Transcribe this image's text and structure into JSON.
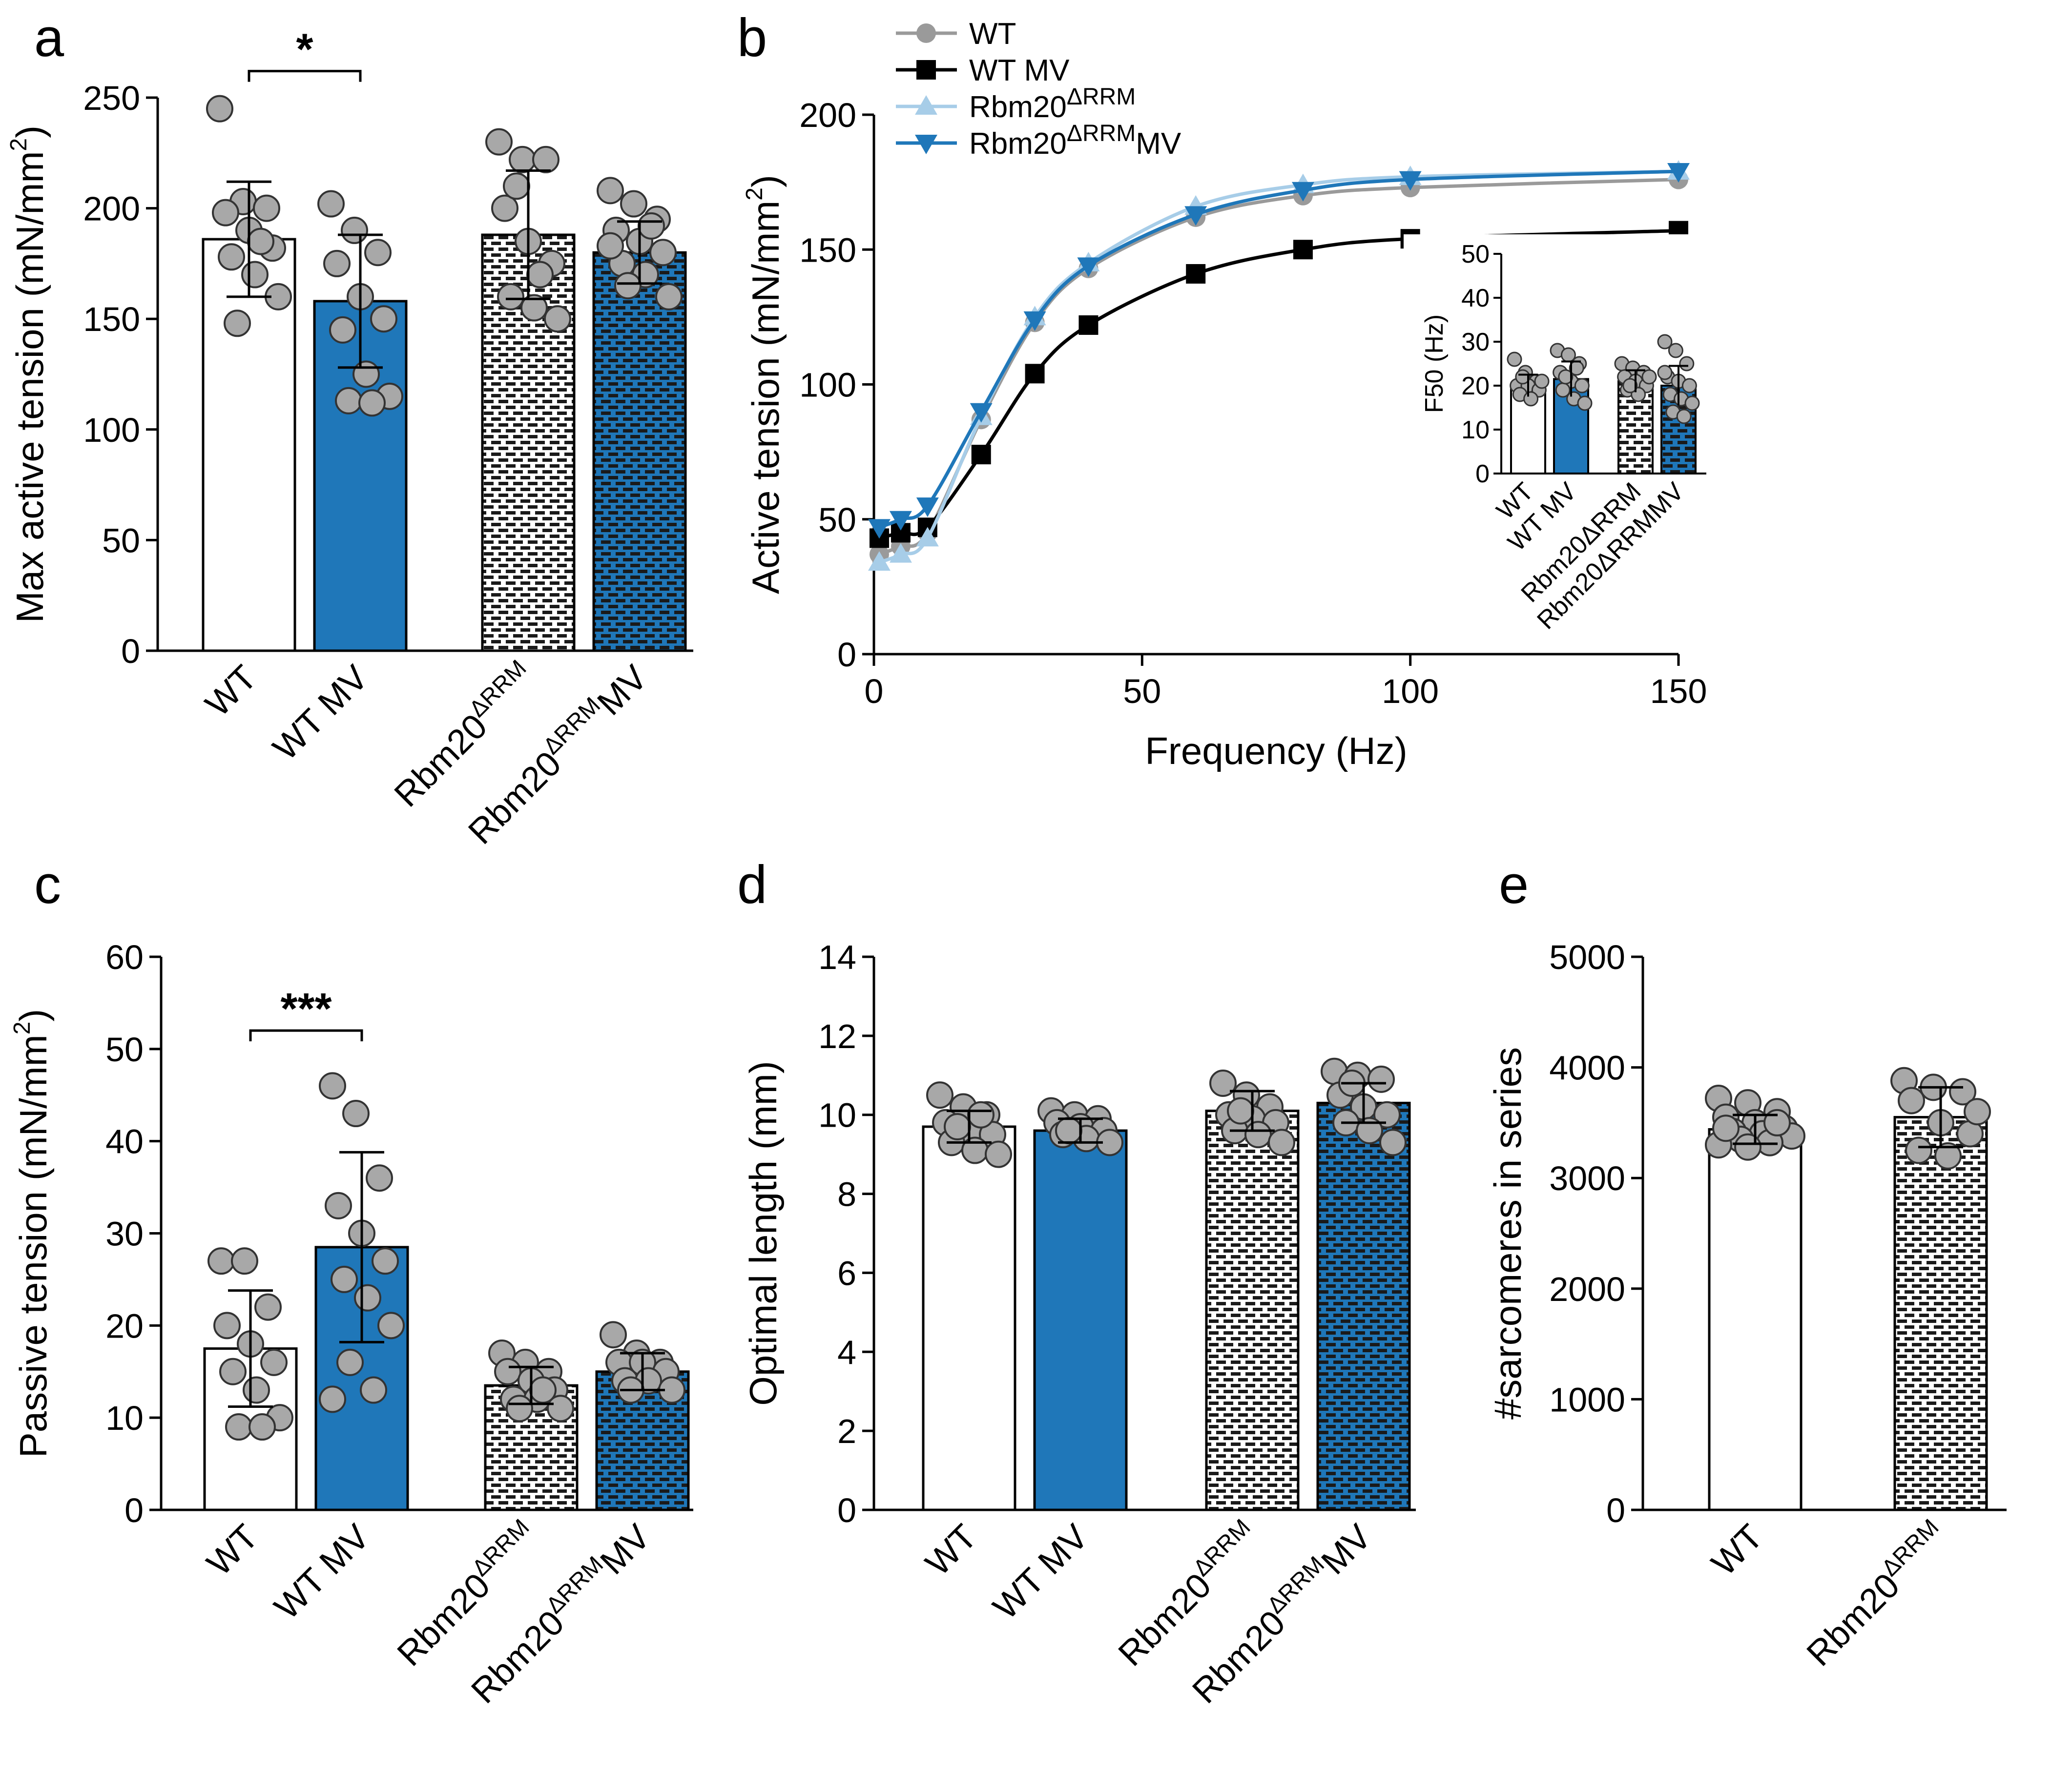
{
  "figure": {
    "panel_labels": [
      "a",
      "b",
      "c",
      "d",
      "e"
    ]
  },
  "colors": {
    "wt_fill": "#ffffff",
    "wt_mv_fill": "#1f77b9",
    "pattern_fg": "#1a1a1a",
    "pattern_blue_bg": "#1f77b9",
    "dot_fill": "#a8a8a8",
    "dot_stroke": "#333333",
    "wt_line": "#9a9a9a",
    "wt_mv_line": "#000000",
    "rbm_line": "#a7cde8",
    "rbm_mv_line": "#1f77b9"
  },
  "chart_data": [
    {
      "panel": "a",
      "type": "bar",
      "ylabel": "Max active tension (mN/mm²)",
      "ylabel_main": "Max active tension (mN/mm",
      "ylabel_sup": "2",
      "ylabel_tail": ")",
      "ylim": [
        0,
        250
      ],
      "yticks": [
        0,
        50,
        100,
        150,
        200,
        250
      ],
      "categories": [
        "WT",
        "WT MV",
        "Rbm20ΔRRM",
        "Rbm20ΔRRMMV"
      ],
      "category_labels": [
        {
          "main": "WT",
          "sup": "",
          "tail": ""
        },
        {
          "main": "WT MV",
          "sup": "",
          "tail": ""
        },
        {
          "main": "Rbm20",
          "sup": "ΔRRM",
          "tail": ""
        },
        {
          "main": "Rbm20",
          "sup": "ΔRRM",
          "tail": "MV"
        }
      ],
      "means": [
        186,
        158,
        188,
        180
      ],
      "sd": [
        26,
        30,
        29,
        14
      ],
      "points": [
        [
          245,
          203,
          200,
          198,
          190,
          182,
          178,
          170,
          160,
          148,
          185
        ],
        [
          202,
          190,
          180,
          175,
          160,
          150,
          145,
          125,
          115,
          113,
          112
        ],
        [
          230,
          222,
          222,
          200,
          185,
          175,
          160,
          155,
          150,
          210,
          170
        ],
        [
          208,
          202,
          195,
          190,
          185,
          180,
          175,
          170,
          160,
          165,
          192,
          183
        ]
      ],
      "significance": {
        "label": "*",
        "between": [
          0,
          1
        ],
        "value": 262
      }
    },
    {
      "panel": "b",
      "type": "line",
      "xlabel": "Frequency (Hz)",
      "ylabel": "Active tension (mN/mm²)",
      "ylabel_main": "Active tension (mN/mm",
      "ylabel_sup": "2",
      "ylabel_tail": ")",
      "xlim": [
        0,
        150
      ],
      "ylim": [
        0,
        200
      ],
      "xticks": [
        0,
        50,
        100,
        150
      ],
      "yticks": [
        0,
        50,
        100,
        150,
        200
      ],
      "x": [
        1,
        5,
        10,
        20,
        30,
        40,
        60,
        80,
        100,
        150
      ],
      "series": [
        {
          "name": "WT",
          "main": "WT",
          "sup": "",
          "tail": "",
          "marker": "circle",
          "values": [
            37,
            40,
            45,
            87,
            123,
            143,
            162,
            170,
            173,
            176
          ]
        },
        {
          "name": "WT MV",
          "main": "WT MV",
          "sup": "",
          "tail": "",
          "marker": "square",
          "values": [
            43,
            45,
            47,
            74,
            104,
            122,
            141,
            150,
            154,
            157
          ]
        },
        {
          "name": "Rbm20ΔRRM",
          "main": "Rbm20",
          "sup": "ΔRRM",
          "tail": "",
          "marker": "triangle-up",
          "values": [
            34,
            37,
            43,
            88,
            125,
            145,
            166,
            174,
            177,
            179
          ]
        },
        {
          "name": "Rbm20ΔRRMMV",
          "main": "Rbm20",
          "sup": "ΔRRM",
          "tail": "MV",
          "marker": "triangle-down",
          "values": [
            47,
            50,
            55,
            90,
            124,
            144,
            163,
            172,
            176,
            179
          ]
        }
      ],
      "inset": {
        "type": "bar",
        "ylabel": "F50 (Hz)",
        "ylim": [
          0,
          50
        ],
        "yticks": [
          0,
          10,
          20,
          30,
          40,
          50
        ],
        "categories": [
          "WT",
          "WT MV",
          "Rbm20ΔRRM",
          "Rbm20ΔRRMMV"
        ],
        "means": [
          20,
          21.5,
          21,
          20
        ],
        "sd": [
          2.5,
          4,
          2.5,
          4.5
        ],
        "points": [
          [
            26,
            23,
            21,
            20,
            20,
            19,
            18,
            17,
            21,
            22
          ],
          [
            28,
            27,
            25,
            23,
            21,
            20,
            19,
            17,
            16,
            22,
            24
          ],
          [
            25,
            24,
            23,
            22,
            21,
            20,
            19,
            18,
            22,
            20
          ],
          [
            30,
            28,
            25,
            22,
            21,
            20,
            18,
            17,
            16,
            14,
            13,
            23
          ]
        ]
      }
    },
    {
      "panel": "c",
      "type": "bar",
      "ylabel": "Passive tension (mN/mm²)",
      "ylabel_main": "Passive tension (mN/mm",
      "ylabel_sup": "2",
      "ylabel_tail": ")",
      "ylim": [
        0,
        60
      ],
      "yticks": [
        0,
        10,
        20,
        30,
        40,
        50,
        60
      ],
      "categories": [
        "WT",
        "WT MV",
        "Rbm20ΔRRM",
        "Rbm20ΔRRMMV"
      ],
      "category_labels": [
        {
          "main": "WT",
          "sup": "",
          "tail": ""
        },
        {
          "main": "WT MV",
          "sup": "",
          "tail": ""
        },
        {
          "main": "Rbm20",
          "sup": "ΔRRM",
          "tail": ""
        },
        {
          "main": "Rbm20",
          "sup": "ΔRRM",
          "tail": "MV"
        }
      ],
      "means": [
        17.5,
        28.5,
        13.5,
        15
      ],
      "sd": [
        6.3,
        10.3,
        2,
        2
      ],
      "points": [
        [
          27,
          27,
          22,
          20,
          18,
          16,
          15,
          13,
          10,
          9,
          9
        ],
        [
          46,
          43,
          36,
          33,
          30,
          27,
          25,
          23,
          20,
          16,
          13,
          12
        ],
        [
          17,
          16,
          15,
          15,
          14,
          13,
          12,
          12,
          11,
          11,
          13
        ],
        [
          19,
          17,
          16,
          16,
          16,
          15,
          14,
          14,
          13,
          13
        ]
      ],
      "significance": {
        "label": "***",
        "between": [
          0,
          1
        ],
        "value": 52
      }
    },
    {
      "panel": "d",
      "type": "bar",
      "ylabel": "Optimal length  (mm)",
      "ylim": [
        0,
        14
      ],
      "yticks": [
        0,
        2,
        4,
        6,
        8,
        10,
        12,
        14
      ],
      "categories": [
        "WT",
        "WT MV",
        "Rbm20ΔRRM",
        "Rbm20ΔRRMMV"
      ],
      "category_labels": [
        {
          "main": "WT",
          "sup": "",
          "tail": ""
        },
        {
          "main": "WT MV",
          "sup": "",
          "tail": ""
        },
        {
          "main": "Rbm20",
          "sup": "ΔRRM",
          "tail": ""
        },
        {
          "main": "Rbm20",
          "sup": "ΔRRM",
          "tail": "MV"
        }
      ],
      "means": [
        9.7,
        9.6,
        10.1,
        10.3
      ],
      "sd": [
        0.4,
        0.3,
        0.5,
        0.5
      ],
      "points": [
        [
          10.5,
          10.2,
          10.0,
          9.8,
          9.6,
          9.5,
          9.3,
          9.1,
          9.0,
          9.7,
          10.0
        ],
        [
          10.1,
          10.0,
          9.9,
          9.8,
          9.7,
          9.6,
          9.5,
          9.4,
          9.3,
          9.6
        ],
        [
          10.8,
          10.5,
          10.2,
          10.0,
          9.9,
          9.8,
          9.6,
          9.5,
          9.3,
          10.1
        ],
        [
          11.1,
          11.0,
          10.9,
          10.5,
          10.2,
          10.0,
          9.8,
          9.6,
          9.3,
          10.8
        ]
      ]
    },
    {
      "panel": "e",
      "type": "bar",
      "ylabel": "#sarcomeres in series",
      "ylim": [
        0,
        5000
      ],
      "yticks": [
        0,
        1000,
        2000,
        3000,
        4000,
        5000
      ],
      "categories": [
        "WT",
        "Rbm20ΔRRM"
      ],
      "category_labels": [
        {
          "main": "WT",
          "sup": "",
          "tail": ""
        },
        {
          "main": "Rbm20",
          "sup": "ΔRRM",
          "tail": ""
        }
      ],
      "means": [
        3440,
        3550
      ],
      "sd": [
        130,
        270
      ],
      "points": [
        [
          3720,
          3680,
          3600,
          3550,
          3500,
          3450,
          3420,
          3400,
          3380,
          3350,
          3320,
          3300,
          3280,
          3500,
          3450
        ],
        [
          3880,
          3820,
          3780,
          3700,
          3500,
          3400,
          3250,
          3200,
          3600
        ]
      ]
    }
  ]
}
